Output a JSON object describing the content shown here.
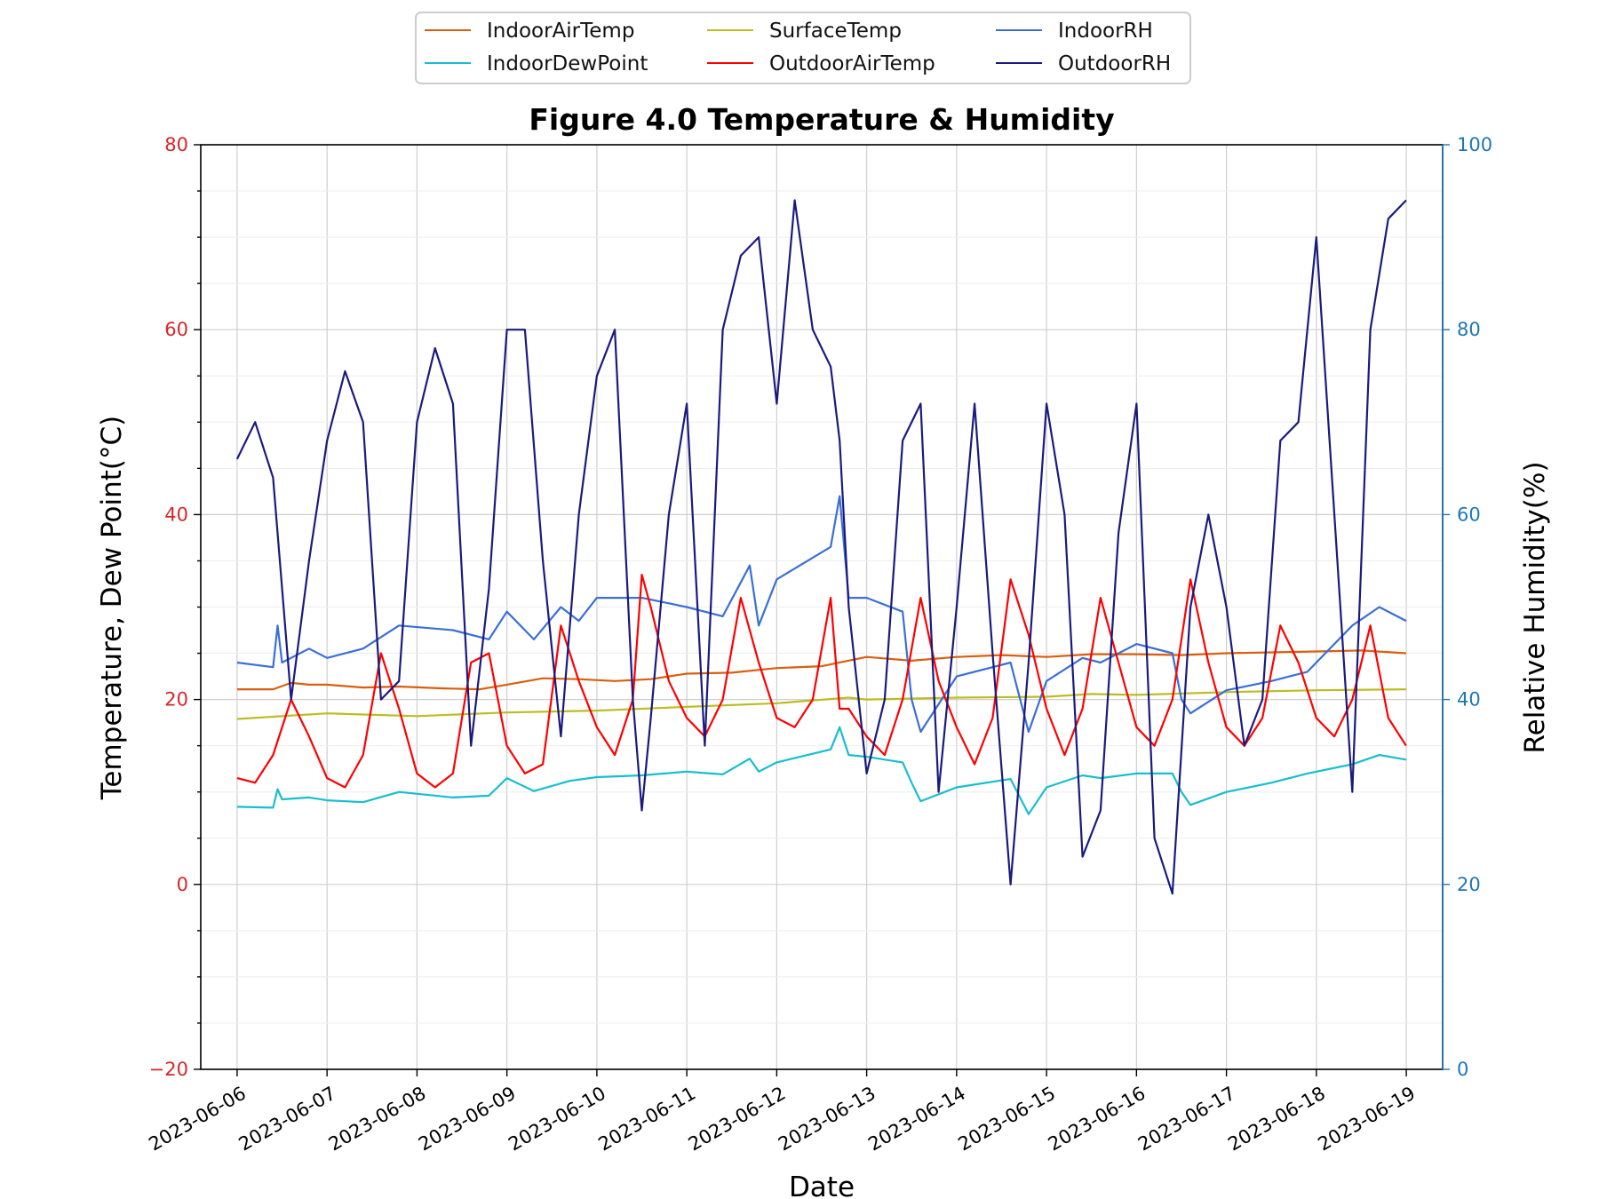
{
  "chart_data": {
    "type": "line",
    "title": "Figure 4.0 Temperature & Humidity",
    "xlabel": "Date",
    "ylabel_left": "Temperature, Dew Point(°C)",
    "ylabel_right": "Relative Humidity(%)",
    "x_ticks": [
      "2023-06-06",
      "2023-06-07",
      "2023-06-08",
      "2023-06-09",
      "2023-06-10",
      "2023-06-11",
      "2023-06-12",
      "2023-06-13",
      "2023-06-14",
      "2023-06-15",
      "2023-06-16",
      "2023-06-17",
      "2023-06-18",
      "2023-06-19"
    ],
    "ylim_left": [
      -20,
      80
    ],
    "yticks_left": [
      "−20",
      "0",
      "20",
      "40",
      "60",
      "80"
    ],
    "ylim_right": [
      0,
      100
    ],
    "yticks_right": [
      "0",
      "20",
      "40",
      "60",
      "80",
      "100"
    ],
    "x_range": [
      "2023-06-05T14:18",
      "2023-06-19T09:42"
    ],
    "grid": true,
    "legend_position": "top-center",
    "colors": {
      "left_axis": "#d62728",
      "right_axis": "#1f77b4"
    },
    "series": [
      {
        "name": "IndoorAirTemp",
        "axis": "left",
        "color": "#d95f0e",
        "x": [
          "2023-06-06",
          "2023-06-06T09:36",
          "2023-06-06T14:24",
          "2023-06-06T19:12",
          "2023-06-07T00:00",
          "2023-06-07T09:36",
          "2023-06-07T19:12",
          "2023-06-08T07:12",
          "2023-06-08T16:48",
          "2023-06-09T00:00",
          "2023-06-09T09:36",
          "2023-06-09T19:12",
          "2023-06-10T04:48",
          "2023-06-10T14:24",
          "2023-06-11T00:00",
          "2023-06-11T12:00",
          "2023-06-12T00:00",
          "2023-06-12T12:00",
          "2023-06-13T00:00",
          "2023-06-13T12:00",
          "2023-06-14T00:00",
          "2023-06-14T12:00",
          "2023-06-15T00:00",
          "2023-06-15T12:00",
          "2023-06-16T00:00",
          "2023-06-16T12:00",
          "2023-06-17T00:00",
          "2023-06-17T12:00",
          "2023-06-18T00:00",
          "2023-06-18T12:00",
          "2023-06-18T23:58"
        ],
        "y": [
          21.1,
          21.1,
          21.8,
          21.6,
          21.6,
          21.3,
          21.4,
          21.2,
          21.1,
          21.6,
          22.3,
          22.2,
          22.0,
          22.2,
          22.8,
          22.9,
          23.4,
          23.6,
          24.6,
          24.2,
          24.6,
          24.8,
          24.6,
          24.9,
          24.9,
          24.8,
          25.0,
          25.1,
          25.2,
          25.3,
          25.0
        ]
      },
      {
        "name": "SurfaceTemp",
        "axis": "left",
        "color": "#bcbd22",
        "x": [
          "2023-06-06",
          "2023-06-07",
          "2023-06-08",
          "2023-06-09",
          "2023-06-10",
          "2023-06-11",
          "2023-06-12",
          "2023-06-12T19:12",
          "2023-06-13",
          "2023-06-14",
          "2023-06-15",
          "2023-06-15T12:00",
          "2023-06-16",
          "2023-06-17",
          "2023-06-18",
          "2023-06-18T23:58"
        ],
        "y": [
          17.9,
          18.5,
          18.2,
          18.6,
          18.8,
          19.2,
          19.6,
          20.2,
          20.0,
          20.2,
          20.3,
          20.6,
          20.5,
          20.8,
          21.0,
          21.1
        ]
      },
      {
        "name": "IndoorDewPoint",
        "axis": "left",
        "color": "#17becf",
        "x": [
          "2023-06-06",
          "2023-06-06T09:36",
          "2023-06-06T10:48",
          "2023-06-06T12:00",
          "2023-06-06T19:12",
          "2023-06-07",
          "2023-06-07T09:36",
          "2023-06-07T19:12",
          "2023-06-08T09:36",
          "2023-06-08T19:12",
          "2023-06-09",
          "2023-06-09T07:12",
          "2023-06-09T16:48",
          "2023-06-10",
          "2023-06-10T12:00",
          "2023-06-11",
          "2023-06-11T09:36",
          "2023-06-11T16:48",
          "2023-06-11T19:12",
          "2023-06-12",
          "2023-06-12T14:24",
          "2023-06-12T16:48",
          "2023-06-12T19:12",
          "2023-06-13",
          "2023-06-13T09:36",
          "2023-06-13T12:00",
          "2023-06-13T14:24",
          "2023-06-14",
          "2023-06-14T14:24",
          "2023-06-14T19:12",
          "2023-06-15",
          "2023-06-15T09:36",
          "2023-06-15T14:24",
          "2023-06-16",
          "2023-06-16T09:36",
          "2023-06-16T12:00",
          "2023-06-16T14:24",
          "2023-06-17",
          "2023-06-17T12:00",
          "2023-06-17T21:36",
          "2023-06-18T09:36",
          "2023-06-18T16:48",
          "2023-06-18T23:58"
        ],
        "y": [
          8.4,
          8.3,
          10.3,
          9.2,
          9.4,
          9.1,
          8.9,
          10.0,
          9.4,
          9.6,
          11.5,
          10.1,
          11.2,
          11.6,
          11.8,
          12.2,
          11.9,
          13.6,
          12.2,
          13.2,
          14.6,
          17.0,
          14.0,
          13.8,
          13.2,
          11.0,
          9.0,
          10.5,
          11.4,
          7.6,
          10.5,
          11.8,
          11.5,
          12.0,
          12.0,
          10.0,
          8.6,
          10.0,
          11.0,
          12.0,
          13.0,
          14.0,
          13.5
        ]
      },
      {
        "name": "OutdoorAirTemp",
        "axis": "left",
        "color": "#ff0000",
        "x": [
          "2023-06-06",
          "2023-06-06T04:48",
          "2023-06-06T09:36",
          "2023-06-06T14:24",
          "2023-06-06T19:12",
          "2023-06-07",
          "2023-06-07T04:48",
          "2023-06-07T09:36",
          "2023-06-07T14:24",
          "2023-06-07T19:12",
          "2023-06-08",
          "2023-06-08T04:48",
          "2023-06-08T09:36",
          "2023-06-08T14:24",
          "2023-06-08T19:12",
          "2023-06-09",
          "2023-06-09T04:48",
          "2023-06-09T09:36",
          "2023-06-09T14:24",
          "2023-06-09T19:12",
          "2023-06-10",
          "2023-06-10T04:48",
          "2023-06-10T09:36",
          "2023-06-10T12:00",
          "2023-06-10T14:24",
          "2023-06-10T19:12",
          "2023-06-11",
          "2023-06-11T04:48",
          "2023-06-11T09:36",
          "2023-06-11T14:24",
          "2023-06-11T19:12",
          "2023-06-12",
          "2023-06-12T04:48",
          "2023-06-12T09:36",
          "2023-06-12T14:24",
          "2023-06-12T16:48",
          "2023-06-12T19:12",
          "2023-06-13",
          "2023-06-13T04:48",
          "2023-06-13T09:36",
          "2023-06-13T14:24",
          "2023-06-13T19:12",
          "2023-06-14",
          "2023-06-14T04:48",
          "2023-06-14T09:36",
          "2023-06-14T14:24",
          "2023-06-14T19:12",
          "2023-06-15",
          "2023-06-15T04:48",
          "2023-06-15T09:36",
          "2023-06-15T14:24",
          "2023-06-15T19:12",
          "2023-06-16",
          "2023-06-16T04:48",
          "2023-06-16T09:36",
          "2023-06-16T14:24",
          "2023-06-16T19:12",
          "2023-06-17",
          "2023-06-17T04:48",
          "2023-06-17T09:36",
          "2023-06-17T14:24",
          "2023-06-17T19:12",
          "2023-06-18",
          "2023-06-18T04:48",
          "2023-06-18T09:36",
          "2023-06-18T14:24",
          "2023-06-18T19:12",
          "2023-06-18T23:58"
        ],
        "y": [
          11.5,
          11.0,
          14.0,
          20.0,
          16.0,
          11.5,
          10.5,
          14.0,
          25.0,
          19.0,
          12.0,
          10.5,
          12.0,
          24.0,
          25.0,
          15.0,
          12.0,
          13.0,
          28.0,
          22.0,
          17.0,
          14.0,
          20.0,
          33.5,
          30.0,
          22.0,
          18.0,
          16.0,
          20.0,
          31.0,
          24.0,
          18.0,
          17.0,
          20.0,
          31.0,
          19.0,
          19.0,
          16.0,
          14.0,
          20.0,
          31.0,
          22.0,
          17.0,
          13.0,
          18.0,
          33.0,
          27.0,
          19.0,
          14.0,
          19.0,
          31.0,
          24.0,
          17.0,
          15.0,
          20.0,
          33.0,
          24.0,
          17.0,
          15.0,
          18.0,
          28.0,
          24.0,
          18.0,
          16.0,
          20.0,
          28.0,
          18.0,
          15.0
        ]
      },
      {
        "name": "IndoorRH",
        "axis": "right",
        "color": "#3a6fd8",
        "x": [
          "2023-06-06",
          "2023-06-06T09:36",
          "2023-06-06T10:48",
          "2023-06-06T12:00",
          "2023-06-06T19:12",
          "2023-06-07",
          "2023-06-07T09:36",
          "2023-06-07T19:12",
          "2023-06-08T09:36",
          "2023-06-08T19:12",
          "2023-06-09",
          "2023-06-09T07:12",
          "2023-06-09T14:24",
          "2023-06-09T19:12",
          "2023-06-10",
          "2023-06-10T12:00",
          "2023-06-11",
          "2023-06-11T09:36",
          "2023-06-11T16:48",
          "2023-06-11T19:12",
          "2023-06-12",
          "2023-06-12T14:24",
          "2023-06-12T16:48",
          "2023-06-12T19:12",
          "2023-06-13",
          "2023-06-13T09:36",
          "2023-06-13T12:00",
          "2023-06-13T14:24",
          "2023-06-14",
          "2023-06-14T14:24",
          "2023-06-14T19:12",
          "2023-06-15",
          "2023-06-15T09:36",
          "2023-06-15T14:24",
          "2023-06-16",
          "2023-06-16T09:36",
          "2023-06-16T12:00",
          "2023-06-16T14:24",
          "2023-06-17",
          "2023-06-17T12:00",
          "2023-06-17T21:36",
          "2023-06-18T09:36",
          "2023-06-18T16:48",
          "2023-06-18T23:58"
        ],
        "y": [
          44.0,
          43.5,
          48.0,
          44.0,
          45.5,
          44.5,
          45.5,
          48.0,
          47.5,
          46.5,
          49.5,
          46.5,
          50.0,
          48.5,
          51.0,
          51.0,
          50.0,
          49.0,
          54.5,
          48.0,
          53.0,
          56.5,
          62.0,
          51.0,
          51.0,
          49.5,
          40.0,
          36.5,
          42.5,
          44.0,
          36.5,
          42.0,
          44.5,
          44.0,
          46.0,
          45.0,
          40.0,
          38.5,
          41.0,
          42.0,
          43.0,
          48.0,
          50.0,
          48.5
        ]
      },
      {
        "name": "OutdoorRH",
        "axis": "right",
        "color": "#1a1a80",
        "x": [
          "2023-06-06",
          "2023-06-06T04:48",
          "2023-06-06T09:36",
          "2023-06-06T14:24",
          "2023-06-06T19:12",
          "2023-06-07",
          "2023-06-07T04:48",
          "2023-06-07T09:36",
          "2023-06-07T14:24",
          "2023-06-07T19:12",
          "2023-06-08",
          "2023-06-08T04:48",
          "2023-06-08T09:36",
          "2023-06-08T14:24",
          "2023-06-08T19:12",
          "2023-06-09",
          "2023-06-09T04:48",
          "2023-06-09T09:36",
          "2023-06-09T14:24",
          "2023-06-09T19:12",
          "2023-06-10",
          "2023-06-10T04:48",
          "2023-06-10T09:36",
          "2023-06-10T12:00",
          "2023-06-10T14:24",
          "2023-06-10T19:12",
          "2023-06-11",
          "2023-06-11T04:48",
          "2023-06-11T09:36",
          "2023-06-11T14:24",
          "2023-06-11T19:12",
          "2023-06-12",
          "2023-06-12T04:48",
          "2023-06-12T09:36",
          "2023-06-12T14:24",
          "2023-06-12T16:48",
          "2023-06-12T19:12",
          "2023-06-13",
          "2023-06-13T04:48",
          "2023-06-13T09:36",
          "2023-06-13T14:24",
          "2023-06-13T19:12",
          "2023-06-14",
          "2023-06-14T04:48",
          "2023-06-14T09:36",
          "2023-06-14T14:24",
          "2023-06-14T19:12",
          "2023-06-15",
          "2023-06-15T04:48",
          "2023-06-15T09:36",
          "2023-06-15T14:24",
          "2023-06-15T19:12",
          "2023-06-16",
          "2023-06-16T04:48",
          "2023-06-16T09:36",
          "2023-06-16T14:24",
          "2023-06-16T19:12",
          "2023-06-17",
          "2023-06-17T04:48",
          "2023-06-17T09:36",
          "2023-06-17T14:24",
          "2023-06-17T19:12",
          "2023-06-18",
          "2023-06-18T04:48",
          "2023-06-18T09:36",
          "2023-06-18T14:24",
          "2023-06-18T19:12",
          "2023-06-18T23:58"
        ],
        "y": [
          66.0,
          70.0,
          64.0,
          40.0,
          55.0,
          68.0,
          75.5,
          70.0,
          40.0,
          42.0,
          70.0,
          78.0,
          72.0,
          35.0,
          52.0,
          80.0,
          80.0,
          55.0,
          36.0,
          60.0,
          75.0,
          80.0,
          40.0,
          28.0,
          38.0,
          60.0,
          72.0,
          35.0,
          80.0,
          88.0,
          90.0,
          72.0,
          94.0,
          80.0,
          76.0,
          68.0,
          50.0,
          32.0,
          40.0,
          68.0,
          72.0,
          30.0,
          50.0,
          72.0,
          45.0,
          20.0,
          44.0,
          72.0,
          60.0,
          23.0,
          28.0,
          58.0,
          72.0,
          25.0,
          19.0,
          50.0,
          60.0,
          50.0,
          35.0,
          40.0,
          68.0,
          70.0,
          90.0,
          60.0,
          30.0,
          80.0,
          92.0,
          94.0
        ]
      }
    ]
  }
}
